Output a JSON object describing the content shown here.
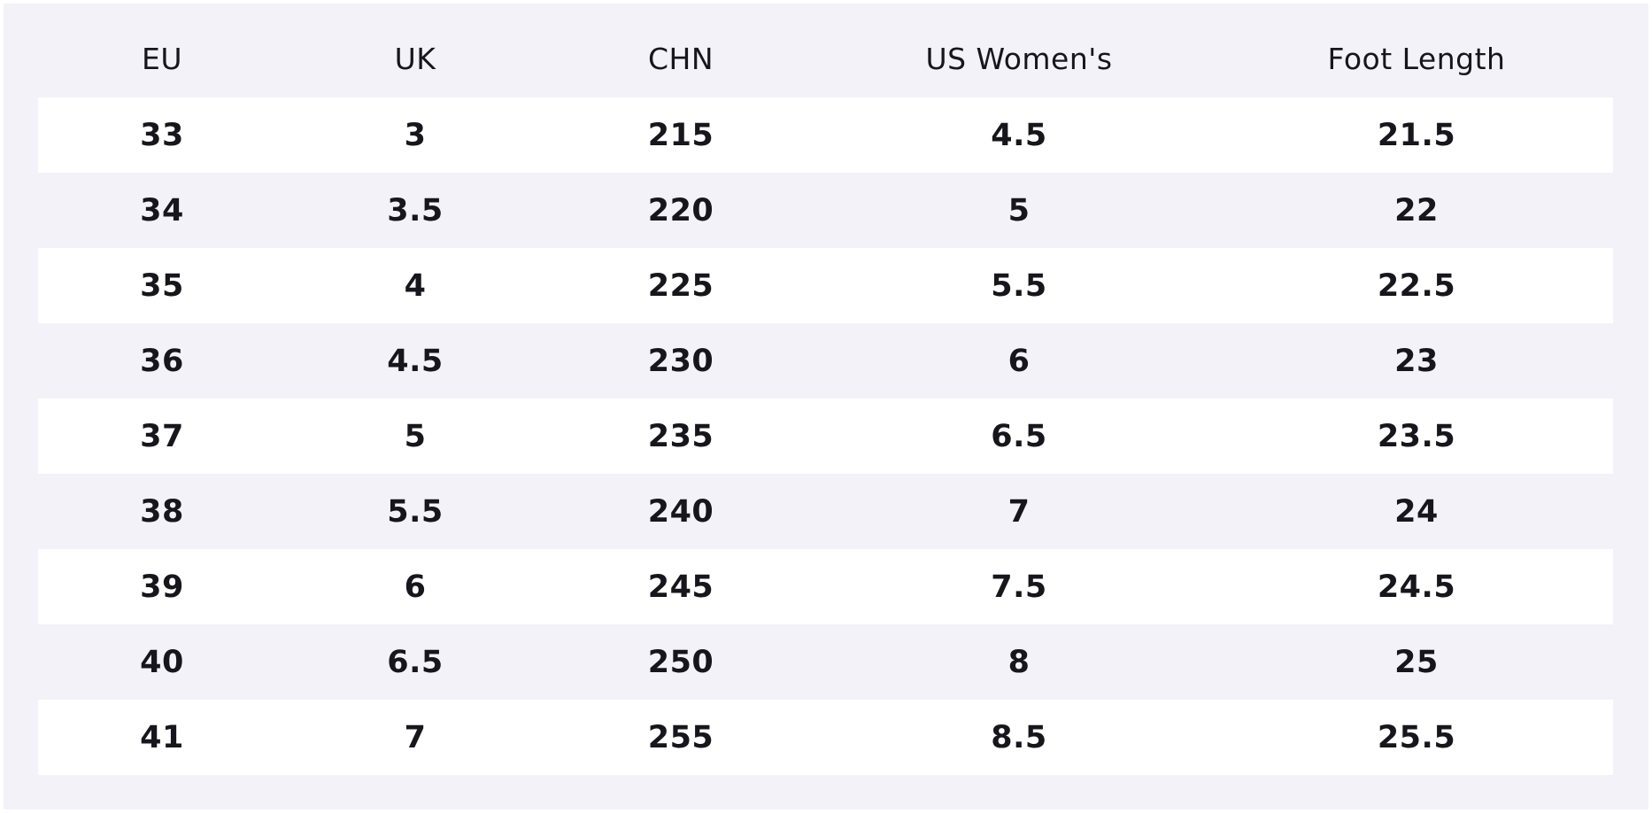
{
  "table": {
    "header": [
      "EU",
      "UK",
      "CHN",
      "US Women's",
      "Foot Length"
    ],
    "rows": [
      [
        33,
        3,
        215,
        4.5,
        21.5
      ],
      [
        34,
        3.5,
        220,
        5,
        22
      ],
      [
        35,
        4,
        225,
        5.5,
        22.5
      ],
      [
        36,
        4.5,
        230,
        6,
        23
      ],
      [
        37,
        5,
        235,
        6.5,
        23.5
      ],
      [
        38,
        5.5,
        240,
        7,
        24
      ],
      [
        39,
        6,
        245,
        7.5,
        24.5
      ],
      [
        40,
        6.5,
        250,
        8,
        25
      ],
      [
        41,
        7,
        255,
        8.5,
        25.5
      ]
    ]
  }
}
